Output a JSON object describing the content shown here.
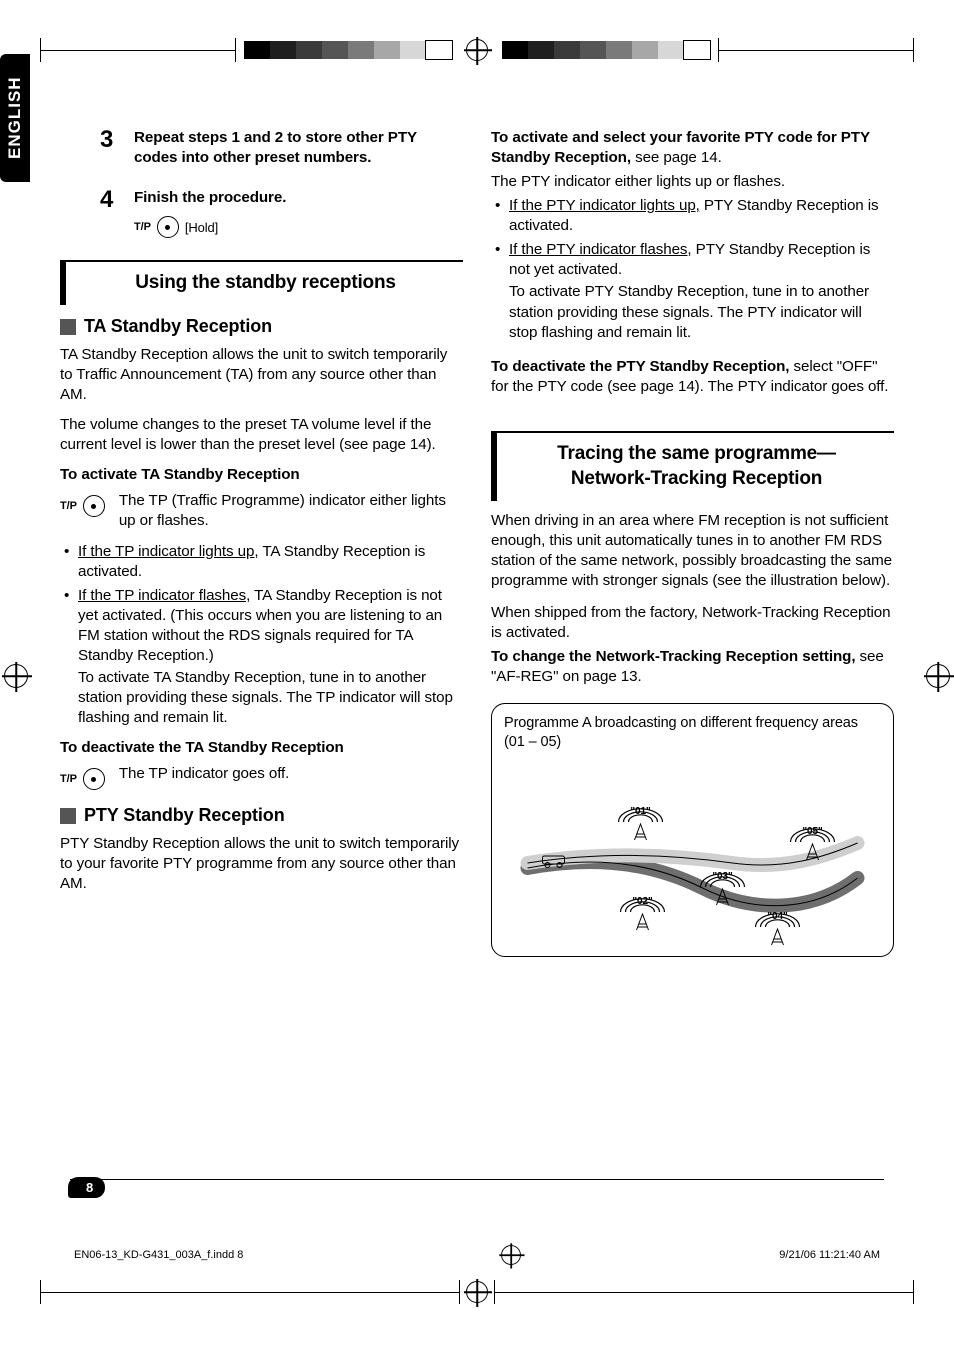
{
  "language_tab": "ENGLISH",
  "crop": {
    "swatch_colors_left": [
      "#000000",
      "#1f1f1f",
      "#3a3a3a",
      "#555555",
      "#7a7a7a",
      "#a7a7a7",
      "#d7d7d7",
      "#ffffff"
    ],
    "swatch_colors_right": [
      "#000000",
      "#1f1f1f",
      "#3a3a3a",
      "#555555",
      "#7a7a7a",
      "#a7a7a7",
      "#d7d7d7",
      "#ffffff"
    ],
    "swatch_border": "#000000"
  },
  "left": {
    "steps": [
      {
        "num": "3",
        "title": "Repeat steps 1 and 2 to store other PTY codes into other preset numbers."
      },
      {
        "num": "4",
        "title": "Finish the procedure.",
        "button_label": "T/P",
        "button_hint": "[Hold]"
      }
    ],
    "section1": {
      "title": "Using the standby receptions",
      "sub1": {
        "title": "TA Standby Reception",
        "intro1": "TA Standby Reception allows the unit to switch temporarily to Traffic Announcement (TA) from any source other than AM.",
        "intro2": "The volume changes to the preset TA volume level if the current level is lower than the preset level (see page 14).",
        "activate_h": "To activate TA Standby Reception",
        "activate_btn": "T/P",
        "activate_txt": "The TP (Traffic Programme) indicator either lights up or flashes.",
        "b1_u": "If the TP indicator lights up,",
        "b1_rest": " TA Standby Reception is activated.",
        "b2_u": "If the TP indicator flashes,",
        "b2_rest": " TA Standby Reception is not yet activated. (This occurs when you are listening to an FM station without the RDS signals required for TA Standby Reception.)",
        "b2_cont": "To activate TA Standby Reception, tune in to another station providing these signals. The TP indicator will stop flashing and remain lit.",
        "deact_h": "To deactivate the TA Standby Reception",
        "deact_btn": "T/P",
        "deact_txt": "The TP indicator goes off."
      },
      "sub2": {
        "title": "PTY Standby Reception",
        "intro": "PTY Standby Reception allows the unit to switch temporarily to your favorite PTY programme from any source other than AM."
      }
    }
  },
  "right": {
    "activate_h1": "To activate and select your favorite PTY code for PTY Standby Reception,",
    "activate_h1_rest": " see page 14.",
    "line1": "The PTY indicator either lights up or flashes.",
    "b1_u": "If the PTY indicator lights up,",
    "b1_rest": " PTY Standby Reception is activated.",
    "b2_u": "If the PTY indicator flashes,",
    "b2_rest": " PTY Standby Reception is not yet activated.",
    "b2_cont": "To activate PTY Standby Reception, tune in to another station providing these signals. The PTY indicator will stop flashing and remain lit.",
    "deact_h": "To deactivate the PTY Standby Reception,",
    "deact_rest": " select \"OFF\" for the PTY code (see page 14). The PTY indicator goes off.",
    "section2": {
      "title_l1": "Tracing the same programme—",
      "title_l2": "Network-Tracking Reception",
      "p1": "When driving in an area where FM reception is not sufficient enough, this unit automatically tunes in to another FM RDS station of the same network, possibly broadcasting the same programme with stronger signals (see the illustration below).",
      "p2": "When shipped from the factory, Network-Tracking Reception is activated.",
      "p3_b": "To change the Network-Tracking Reception setting,",
      "p3_rest": " see \"AF-REG\" on page 13."
    },
    "diagram": {
      "caption": "Programme A broadcasting on different frequency areas (01 – 05)",
      "nodes": [
        "\"01\"",
        "\"02\"",
        "\"03\"",
        "\"04\"",
        "\"05\""
      ],
      "stroke": "#000000",
      "road_primary": "#cfcfcf",
      "road_secondary": "#6e6e6e"
    }
  },
  "page_number": "8",
  "footer": {
    "file": "EN06-13_KD-G431_003A_f.indd   8",
    "stamp": "9/21/06   11:21:40 AM"
  },
  "colors": {
    "text": "#000000",
    "subhead_square": "#555555",
    "section_border": "#000000",
    "background": "#ffffff"
  },
  "typography": {
    "body_pt": 11,
    "section_title_pt": 14,
    "subhead_pt": 13,
    "step_num_pt": 18,
    "font_family": "Helvetica/Arial"
  }
}
